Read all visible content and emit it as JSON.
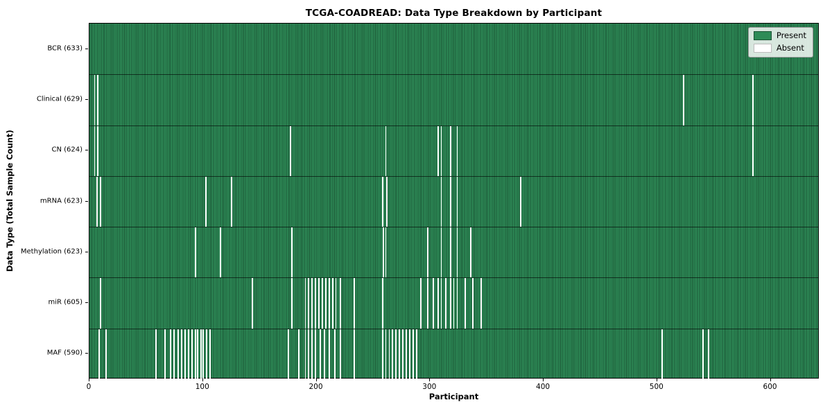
{
  "chart_data": {
    "type": "heatmap",
    "title": "TCGA-COADREAD: Data Type Breakdown by Participant",
    "xlabel": "Participant",
    "ylabel": "Data Type (Total Sample Count)",
    "x_ticks": [
      0,
      100,
      200,
      300,
      400,
      500,
      600
    ],
    "xlim": [
      0,
      643
    ],
    "total_participants": 633,
    "grid": false,
    "legend_position": "upper right",
    "legend": [
      {
        "label": "Present",
        "color": "#2e8b57"
      },
      {
        "label": "Absent",
        "color": "#ffffff"
      }
    ],
    "categories": [
      "BCR (633)",
      "Clinical (629)",
      "CN (624)",
      "mRNA (623)",
      "Methylation (623)",
      "miR (605)",
      "MAF (590)"
    ],
    "rows": [
      {
        "label": "BCR (633)",
        "data_type": "BCR",
        "present_count": 633,
        "absent_count": 0,
        "absent_participants": []
      },
      {
        "label": "Clinical (629)",
        "data_type": "Clinical",
        "present_count": 629,
        "absent_count": 4,
        "absent_participants": [
          4,
          7,
          524,
          585
        ]
      },
      {
        "label": "CN (624)",
        "data_type": "CN",
        "present_count": 624,
        "absent_count": 9,
        "absent_participants": [
          4,
          7,
          177,
          261,
          307,
          310,
          318,
          324,
          585
        ]
      },
      {
        "label": "mRNA (623)",
        "data_type": "mRNA",
        "present_count": 623,
        "absent_count": 10,
        "absent_participants": [
          6,
          9,
          102,
          125,
          258,
          262,
          310,
          318,
          324,
          380
        ]
      },
      {
        "label": "Methylation (623)",
        "data_type": "Methylation",
        "present_count": 623,
        "absent_count": 10,
        "absent_participants": [
          93,
          115,
          178,
          259,
          261,
          298,
          310,
          318,
          324,
          336
        ]
      },
      {
        "label": "miR (605)",
        "data_type": "miR",
        "present_count": 605,
        "absent_count": 28,
        "absent_participants": [
          9,
          143,
          178,
          190,
          193,
          196,
          199,
          202,
          205,
          208,
          211,
          214,
          217,
          221,
          233,
          258,
          292,
          298,
          303,
          307,
          310,
          314,
          318,
          321,
          324,
          331,
          338,
          345
        ]
      },
      {
        "label": "MAF (590)",
        "data_type": "MAF",
        "present_count": 590,
        "absent_count": 43,
        "absent_participants": [
          8,
          14,
          58,
          66,
          71,
          74,
          78,
          81,
          84,
          87,
          90,
          93,
          95,
          98,
          100,
          103,
          106,
          175,
          184,
          190,
          193,
          196,
          199,
          203,
          207,
          211,
          216,
          221,
          233,
          258,
          261,
          264,
          267,
          270,
          273,
          276,
          279,
          282,
          285,
          288,
          505,
          541,
          546
        ]
      }
    ],
    "colors": {
      "present_fill": "#2e8b57",
      "present_edge": "#1b5434",
      "absent_fill": "#ffffff",
      "row_separator": "#1a1a1a",
      "legend_background": "#edf0ed",
      "legend_border": "#9a9a9a",
      "text": "#000000"
    }
  }
}
